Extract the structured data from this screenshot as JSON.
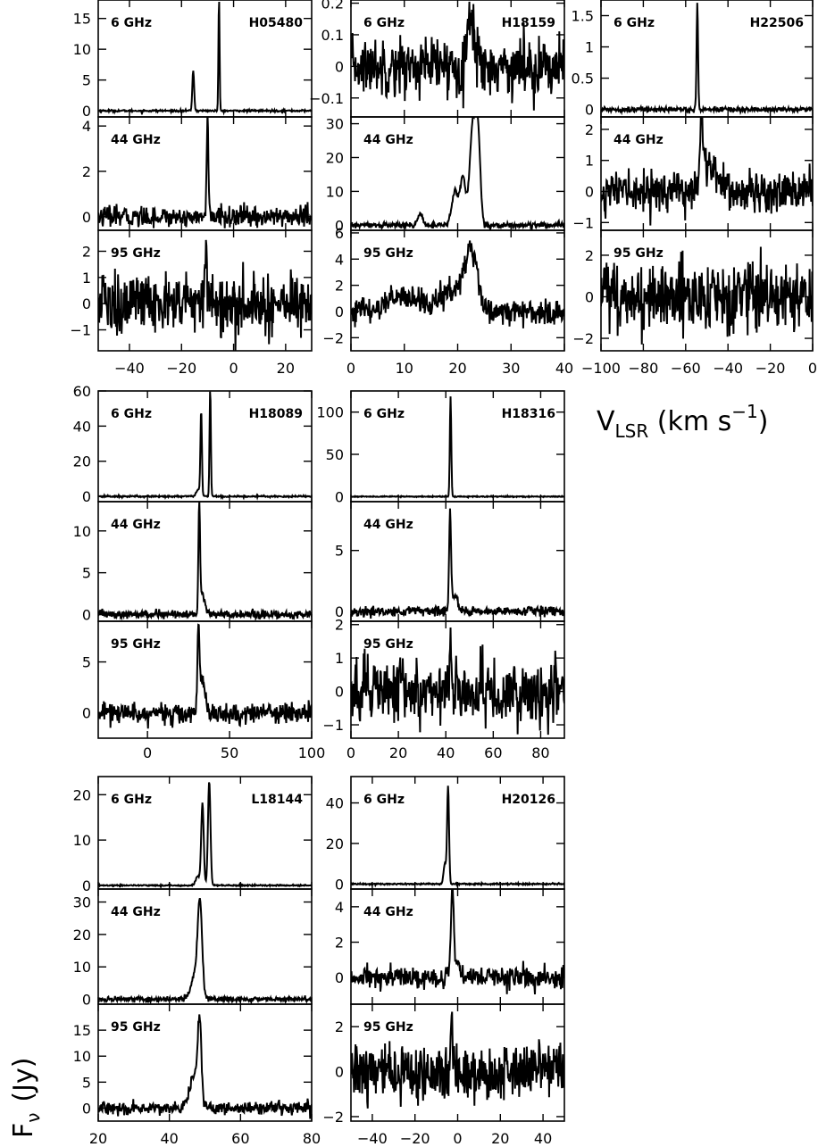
{
  "chart_data": {
    "type": "line",
    "xlabel": "V",
    "xlabel_sub": "LSR",
    "xlabel_unit_pre": " (km s",
    "xlabel_unit_sup": "−1",
    "xlabel_unit_post": ")",
    "ylabel": "F",
    "ylabel_sub": "ν",
    "ylabel_unit": "(Jy)",
    "sources": [
      {
        "id": "H05480",
        "xlim": [
          -52,
          30
        ],
        "xticks": [
          -40,
          -20,
          0,
          20
        ],
        "panels": [
          {
            "band": "6 GHz",
            "ylim": [
              -1,
              18
            ],
            "yticks": [
              0,
              5,
              10,
              15
            ],
            "noise": 0.08,
            "components": [
              {
                "v": -15.5,
                "amp": 6.5,
                "sigma": 0.35
              },
              {
                "v": -5.6,
                "amp": 18.5,
                "sigma": 0.22
              }
            ]
          },
          {
            "band": "44 GHz",
            "ylim": [
              -0.6,
              4.4
            ],
            "yticks": [
              0,
              2,
              4
            ],
            "noise": 0.22,
            "components": [
              {
                "v": -10,
                "amp": 4.2,
                "sigma": 0.35
              }
            ]
          },
          {
            "band": "95 GHz",
            "ylim": [
              -1.8,
              2.8
            ],
            "yticks": [
              -1,
              0,
              1,
              2
            ],
            "noise": 0.6,
            "components": [
              {
                "v": -10.5,
                "amp": 1.8,
                "sigma": 0.5
              }
            ]
          }
        ]
      },
      {
        "id": "H18159",
        "xlim": [
          0,
          40
        ],
        "xticks": [
          0,
          10,
          20,
          30,
          40
        ],
        "panels": [
          {
            "band": "6 GHz",
            "ylim": [
              -0.16,
              0.21
            ],
            "yticks": [
              -0.1,
              0,
              0.1,
              0.2
            ],
            "noise": 0.045,
            "components": [
              {
                "v": 22.5,
                "amp": 0.14,
                "sigma": 0.8
              }
            ]
          },
          {
            "band": "44 GHz",
            "ylim": [
              -1.5,
              32
            ],
            "yticks": [
              0,
              10,
              20,
              30
            ],
            "noise": 0.4,
            "components": [
              {
                "v": 13,
                "amp": 3.5,
                "sigma": 0.5
              },
              {
                "v": 19.5,
                "amp": 10,
                "sigma": 0.6
              },
              {
                "v": 21,
                "amp": 14,
                "sigma": 0.5
              },
              {
                "v": 22.8,
                "amp": 29,
                "sigma": 0.55
              },
              {
                "v": 23.8,
                "amp": 26,
                "sigma": 0.45
              }
            ]
          },
          {
            "band": "95 GHz",
            "ylim": [
              -3,
              6.2
            ],
            "yticks": [
              -2,
              0,
              2,
              4,
              6
            ],
            "noise": 0.5,
            "components": [
              {
                "v": 22.5,
                "amp": 4.5,
                "sigma": 1.2
              },
              {
                "v": 19,
                "amp": 1.6,
                "sigma": 2.0
              },
              {
                "v": 10,
                "amp": 1.2,
                "sigma": 3.0
              }
            ]
          }
        ]
      },
      {
        "id": "H22506",
        "xlim": [
          -100,
          0
        ],
        "xticks": [
          -100,
          -80,
          -60,
          -40,
          -20,
          0
        ],
        "panels": [
          {
            "band": "6 GHz",
            "ylim": [
              -0.12,
              1.75
            ],
            "yticks": [
              0,
              0.5,
              1,
              1.5
            ],
            "noise": 0.02,
            "components": [
              {
                "v": -54.5,
                "amp": 1.7,
                "sigma": 0.35
              }
            ]
          },
          {
            "band": "44 GHz",
            "ylim": [
              -1.25,
              2.4
            ],
            "yticks": [
              -1,
              0,
              1,
              2
            ],
            "noise": 0.32,
            "components": [
              {
                "v": -52.5,
                "amp": 2.0,
                "sigma": 0.6
              },
              {
                "v": -48,
                "amp": 0.8,
                "sigma": 4.0
              }
            ]
          },
          {
            "band": "95 GHz",
            "ylim": [
              -2.6,
              3.2
            ],
            "yticks": [
              -2,
              0,
              2
            ],
            "noise": 0.8,
            "components": [
              {
                "v": -47,
                "amp": 1.5,
                "sigma": 0.6
              }
            ]
          }
        ]
      },
      {
        "id": "H18089",
        "xlim": [
          -30,
          100
        ],
        "xticks": [
          0,
          50,
          100
        ],
        "panels": [
          {
            "band": "6 GHz",
            "ylim": [
              -3,
              60
            ],
            "yticks": [
              0,
              20,
              40,
              60
            ],
            "noise": 0.25,
            "components": [
              {
                "v": 32.7,
                "amp": 48,
                "sigma": 0.45
              },
              {
                "v": 38.2,
                "amp": 62,
                "sigma": 0.4
              },
              {
                "v": 31,
                "amp": 4,
                "sigma": 1.2
              }
            ]
          },
          {
            "band": "44 GHz",
            "ylim": [
              -0.8,
              13.5
            ],
            "yticks": [
              0,
              5,
              10
            ],
            "noise": 0.25,
            "components": [
              {
                "v": 31.5,
                "amp": 12.5,
                "sigma": 0.5
              },
              {
                "v": 33.5,
                "amp": 2.5,
                "sigma": 1.5
              }
            ]
          },
          {
            "band": "95 GHz",
            "ylim": [
              -2.5,
              9
            ],
            "yticks": [
              0,
              5
            ],
            "noise": 0.5,
            "components": [
              {
                "v": 31,
                "amp": 7.5,
                "sigma": 0.6
              },
              {
                "v": 33.5,
                "amp": 3.0,
                "sigma": 1.8
              }
            ]
          }
        ]
      },
      {
        "id": "H18316",
        "xlim": [
          0,
          90
        ],
        "xticks": [
          0,
          20,
          40,
          60,
          80
        ],
        "panels": [
          {
            "band": "6 GHz",
            "ylim": [
              -6,
              125
            ],
            "yticks": [
              0,
              50,
              100
            ],
            "noise": 0.3,
            "components": [
              {
                "v": 42,
                "amp": 118,
                "sigma": 0.3
              }
            ]
          },
          {
            "band": "44 GHz",
            "ylim": [
              -0.8,
              9
            ],
            "yticks": [
              0,
              5
            ],
            "noise": 0.2,
            "components": [
              {
                "v": 41.8,
                "amp": 7.8,
                "sigma": 0.4
              },
              {
                "v": 43.5,
                "amp": 1.5,
                "sigma": 1.2
              }
            ]
          },
          {
            "band": "95 GHz",
            "ylim": [
              -1.4,
              2.1
            ],
            "yticks": [
              -1,
              0,
              1,
              2
            ],
            "noise": 0.45,
            "components": [
              {
                "v": 42,
                "amp": 1.5,
                "sigma": 0.4
              },
              {
                "v": 21,
                "amp": 0.9,
                "sigma": 0.5
              }
            ]
          }
        ]
      },
      {
        "id": "L18144",
        "xlim": [
          20,
          80
        ],
        "xticks": [
          20,
          40,
          60,
          80
        ],
        "panels": [
          {
            "band": "6 GHz",
            "ylim": [
              -0.8,
              24
            ],
            "yticks": [
              0,
              10,
              20
            ],
            "noise": 0.08,
            "components": [
              {
                "v": 49.3,
                "amp": 18,
                "sigma": 0.35
              },
              {
                "v": 51.2,
                "amp": 23,
                "sigma": 0.35
              },
              {
                "v": 48,
                "amp": 2,
                "sigma": 0.6
              }
            ]
          },
          {
            "band": "44 GHz",
            "ylim": [
              -1.5,
              34
            ],
            "yticks": [
              0,
              10,
              20,
              30
            ],
            "noise": 0.4,
            "components": [
              {
                "v": 48.6,
                "amp": 26,
                "sigma": 0.6
              },
              {
                "v": 47.5,
                "amp": 8,
                "sigma": 1.2
              }
            ]
          },
          {
            "band": "95 GHz",
            "ylim": [
              -2.5,
              20
            ],
            "yticks": [
              0,
              5,
              10,
              15
            ],
            "noise": 0.6,
            "components": [
              {
                "v": 48.5,
                "amp": 15,
                "sigma": 0.5
              },
              {
                "v": 47,
                "amp": 6,
                "sigma": 1.3
              }
            ]
          }
        ]
      },
      {
        "id": "H20126",
        "xlim": [
          -50,
          50
        ],
        "xticks": [
          -40,
          -20,
          0,
          20,
          40
        ],
        "panels": [
          {
            "band": "6 GHz",
            "ylim": [
              -2.5,
              53
            ],
            "yticks": [
              0,
              20,
              40
            ],
            "noise": 0.2,
            "components": [
              {
                "v": -4.5,
                "amp": 48,
                "sigma": 0.45
              },
              {
                "v": -6,
                "amp": 10,
                "sigma": 0.6
              }
            ]
          },
          {
            "band": "44 GHz",
            "ylim": [
              -1.5,
              5
            ],
            "yticks": [
              0,
              2,
              4
            ],
            "noise": 0.3,
            "components": [
              {
                "v": -2.5,
                "amp": 4.5,
                "sigma": 0.6
              },
              {
                "v": -1,
                "amp": 1.0,
                "sigma": 2.0
              }
            ]
          },
          {
            "band": "95 GHz",
            "ylim": [
              -2.2,
              3
            ],
            "yticks": [
              -2,
              0,
              2
            ],
            "noise": 0.6,
            "components": [
              {
                "v": -3,
                "amp": 1.8,
                "sigma": 0.6
              }
            ]
          }
        ]
      }
    ]
  }
}
